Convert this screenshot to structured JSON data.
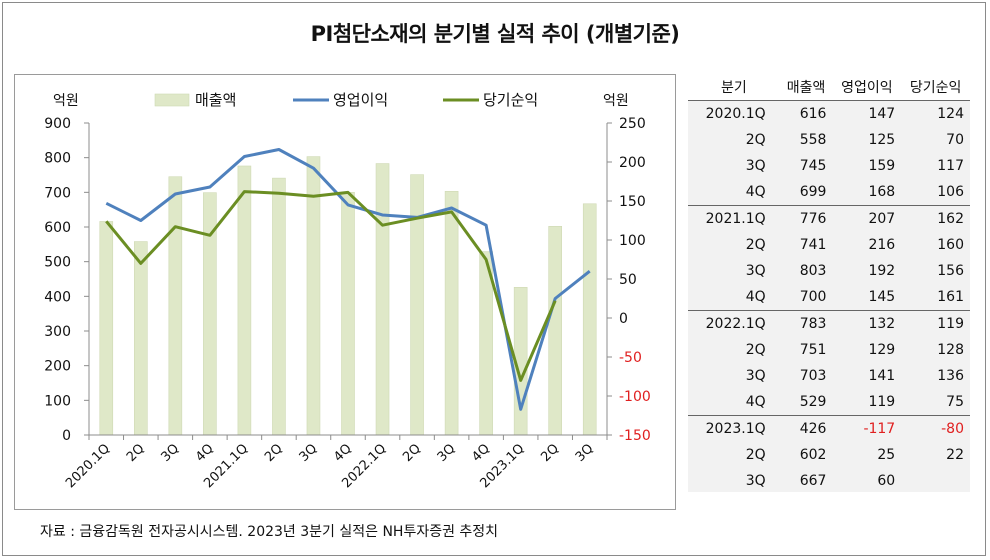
{
  "title": "PI첨단소재의 분기별 실적 추이 (개별기준)",
  "source": "자료 : 금융감독원 전자공시시스템. 2023년 3분기 실적은 NH투자증권 추정치",
  "chart_data": {
    "type": "bar",
    "left_unit": "억원",
    "right_unit": "억원",
    "categories": [
      "2020.1Q",
      "2Q",
      "3Q",
      "4Q",
      "2021.1Q",
      "2Q",
      "3Q",
      "4Q",
      "2022.1Q",
      "2Q",
      "3Q",
      "4Q",
      "2023.1Q",
      "2Q",
      "3Q"
    ],
    "series": [
      {
        "name": "매출액",
        "type": "bar",
        "axis": "left",
        "color": "#dfe8c8",
        "values": [
          616,
          558,
          745,
          699,
          776,
          741,
          803,
          700,
          783,
          751,
          703,
          529,
          426,
          602,
          667
        ]
      },
      {
        "name": "영업이익",
        "type": "line",
        "axis": "right",
        "color": "#4f81bd",
        "values": [
          147,
          125,
          159,
          168,
          207,
          216,
          192,
          145,
          132,
          129,
          141,
          119,
          -117,
          25,
          60
        ]
      },
      {
        "name": "당기순익",
        "type": "line",
        "axis": "right",
        "color": "#6b8e23",
        "values": [
          124,
          70,
          117,
          106,
          162,
          160,
          156,
          161,
          119,
          128,
          136,
          75,
          -80,
          22,
          null
        ]
      }
    ],
    "left_axis": {
      "min": 0,
      "max": 900,
      "ticks": [
        0,
        100,
        200,
        300,
        400,
        500,
        600,
        700,
        800,
        900
      ]
    },
    "right_axis": {
      "min": -150,
      "max": 250,
      "ticks": [
        -150,
        -100,
        -50,
        0,
        50,
        100,
        150,
        200,
        250
      ]
    },
    "grid": false,
    "legend": "top"
  },
  "table": {
    "headers": [
      "분기",
      "매출액",
      "영업이익",
      "당기순익"
    ],
    "rows": [
      [
        "2020.1Q",
        "616",
        "147",
        "124"
      ],
      [
        "2Q",
        "558",
        "125",
        "70"
      ],
      [
        "3Q",
        "745",
        "159",
        "117"
      ],
      [
        "4Q",
        "699",
        "168",
        "106"
      ],
      [
        "2021.1Q",
        "776",
        "207",
        "162"
      ],
      [
        "2Q",
        "741",
        "216",
        "160"
      ],
      [
        "3Q",
        "803",
        "192",
        "156"
      ],
      [
        "4Q",
        "700",
        "145",
        "161"
      ],
      [
        "2022.1Q",
        "783",
        "132",
        "119"
      ],
      [
        "2Q",
        "751",
        "129",
        "128"
      ],
      [
        "3Q",
        "703",
        "141",
        "136"
      ],
      [
        "4Q",
        "529",
        "119",
        "75"
      ],
      [
        "2023.1Q",
        "426",
        "-117",
        "-80"
      ],
      [
        "2Q",
        "602",
        "25",
        "22"
      ],
      [
        "3Q",
        "667",
        "60",
        ""
      ]
    ],
    "negative_color": "#e02020"
  }
}
